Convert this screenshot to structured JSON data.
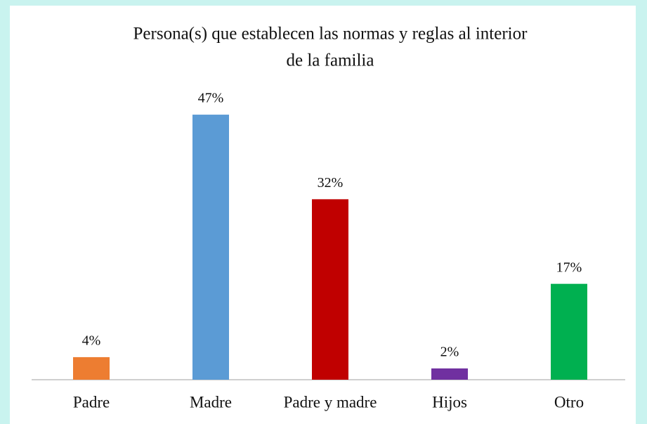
{
  "chart_data": {
    "type": "bar",
    "title": [
      "Persona(s)  que establecen las normas  y reglas  al interior",
      "de la familia"
    ],
    "categories": [
      "Padre",
      "Madre",
      "Padre y madre",
      "Hijos",
      "Otro"
    ],
    "values": [
      4,
      47,
      32,
      2,
      17
    ],
    "value_labels": [
      "4%",
      "47%",
      "32%",
      "2%",
      "17%"
    ],
    "colors": [
      "#ed7d31",
      "#5b9bd5",
      "#c00000",
      "#7030a0",
      "#00b050"
    ]
  }
}
